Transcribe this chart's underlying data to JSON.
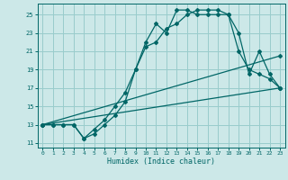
{
  "title": "",
  "xlabel": "Humidex (Indice chaleur)",
  "bg_color": "#cce8e8",
  "grid_color": "#99cccc",
  "line_color": "#006666",
  "xlim": [
    -0.5,
    23.5
  ],
  "ylim": [
    10.5,
    26.2
  ],
  "xticks": [
    0,
    1,
    2,
    3,
    4,
    5,
    6,
    7,
    8,
    9,
    10,
    11,
    12,
    13,
    14,
    15,
    16,
    17,
    18,
    19,
    20,
    21,
    22,
    23
  ],
  "yticks": [
    11,
    13,
    15,
    17,
    19,
    21,
    23,
    25
  ],
  "curve1_x": [
    0,
    1,
    2,
    3,
    4,
    5,
    6,
    7,
    8,
    9,
    10,
    11,
    12,
    13,
    14,
    15,
    16,
    17,
    18,
    19,
    20,
    21,
    22,
    23
  ],
  "curve1_y": [
    13,
    13,
    13,
    13,
    11.5,
    12.5,
    13.5,
    15,
    16.5,
    19,
    21.5,
    22,
    23.5,
    24,
    25,
    25.5,
    25.5,
    25.5,
    25,
    21,
    19,
    18.5,
    18,
    17
  ],
  "curve2_x": [
    0,
    1,
    2,
    3,
    4,
    5,
    6,
    7,
    8,
    9,
    10,
    11,
    12,
    13,
    14,
    15,
    16,
    17,
    18,
    19,
    20,
    21,
    22,
    23
  ],
  "curve2_y": [
    13,
    13,
    13,
    13,
    11.5,
    12,
    13,
    14,
    15.5,
    19,
    22,
    24,
    23,
    25.5,
    25.5,
    25,
    25,
    25,
    25,
    23,
    18.5,
    21,
    18.5,
    17
  ],
  "curve3_x": [
    0,
    23
  ],
  "curve3_y": [
    13,
    17
  ],
  "curve4_x": [
    0,
    23
  ],
  "curve4_y": [
    13,
    20.5
  ]
}
